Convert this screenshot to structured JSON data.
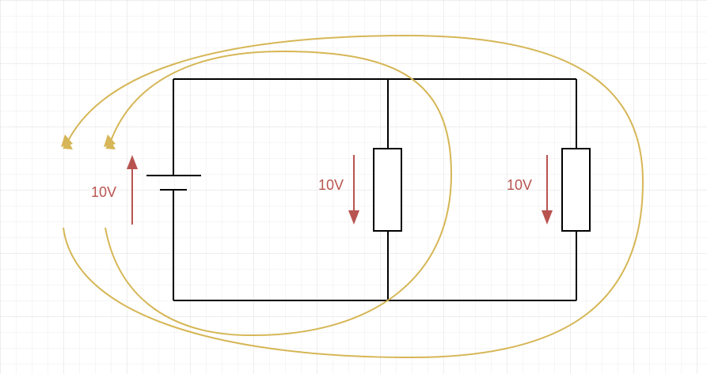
{
  "colors": {
    "background": "#ffffff",
    "grid": "#e6e6e6",
    "wire": "#000000",
    "voltage_arrow": "#b85450",
    "loop_arrow": "#d6b656"
  },
  "voltages": {
    "battery": "10V",
    "resistor_1": "10V",
    "resistor_2": "10V"
  }
}
